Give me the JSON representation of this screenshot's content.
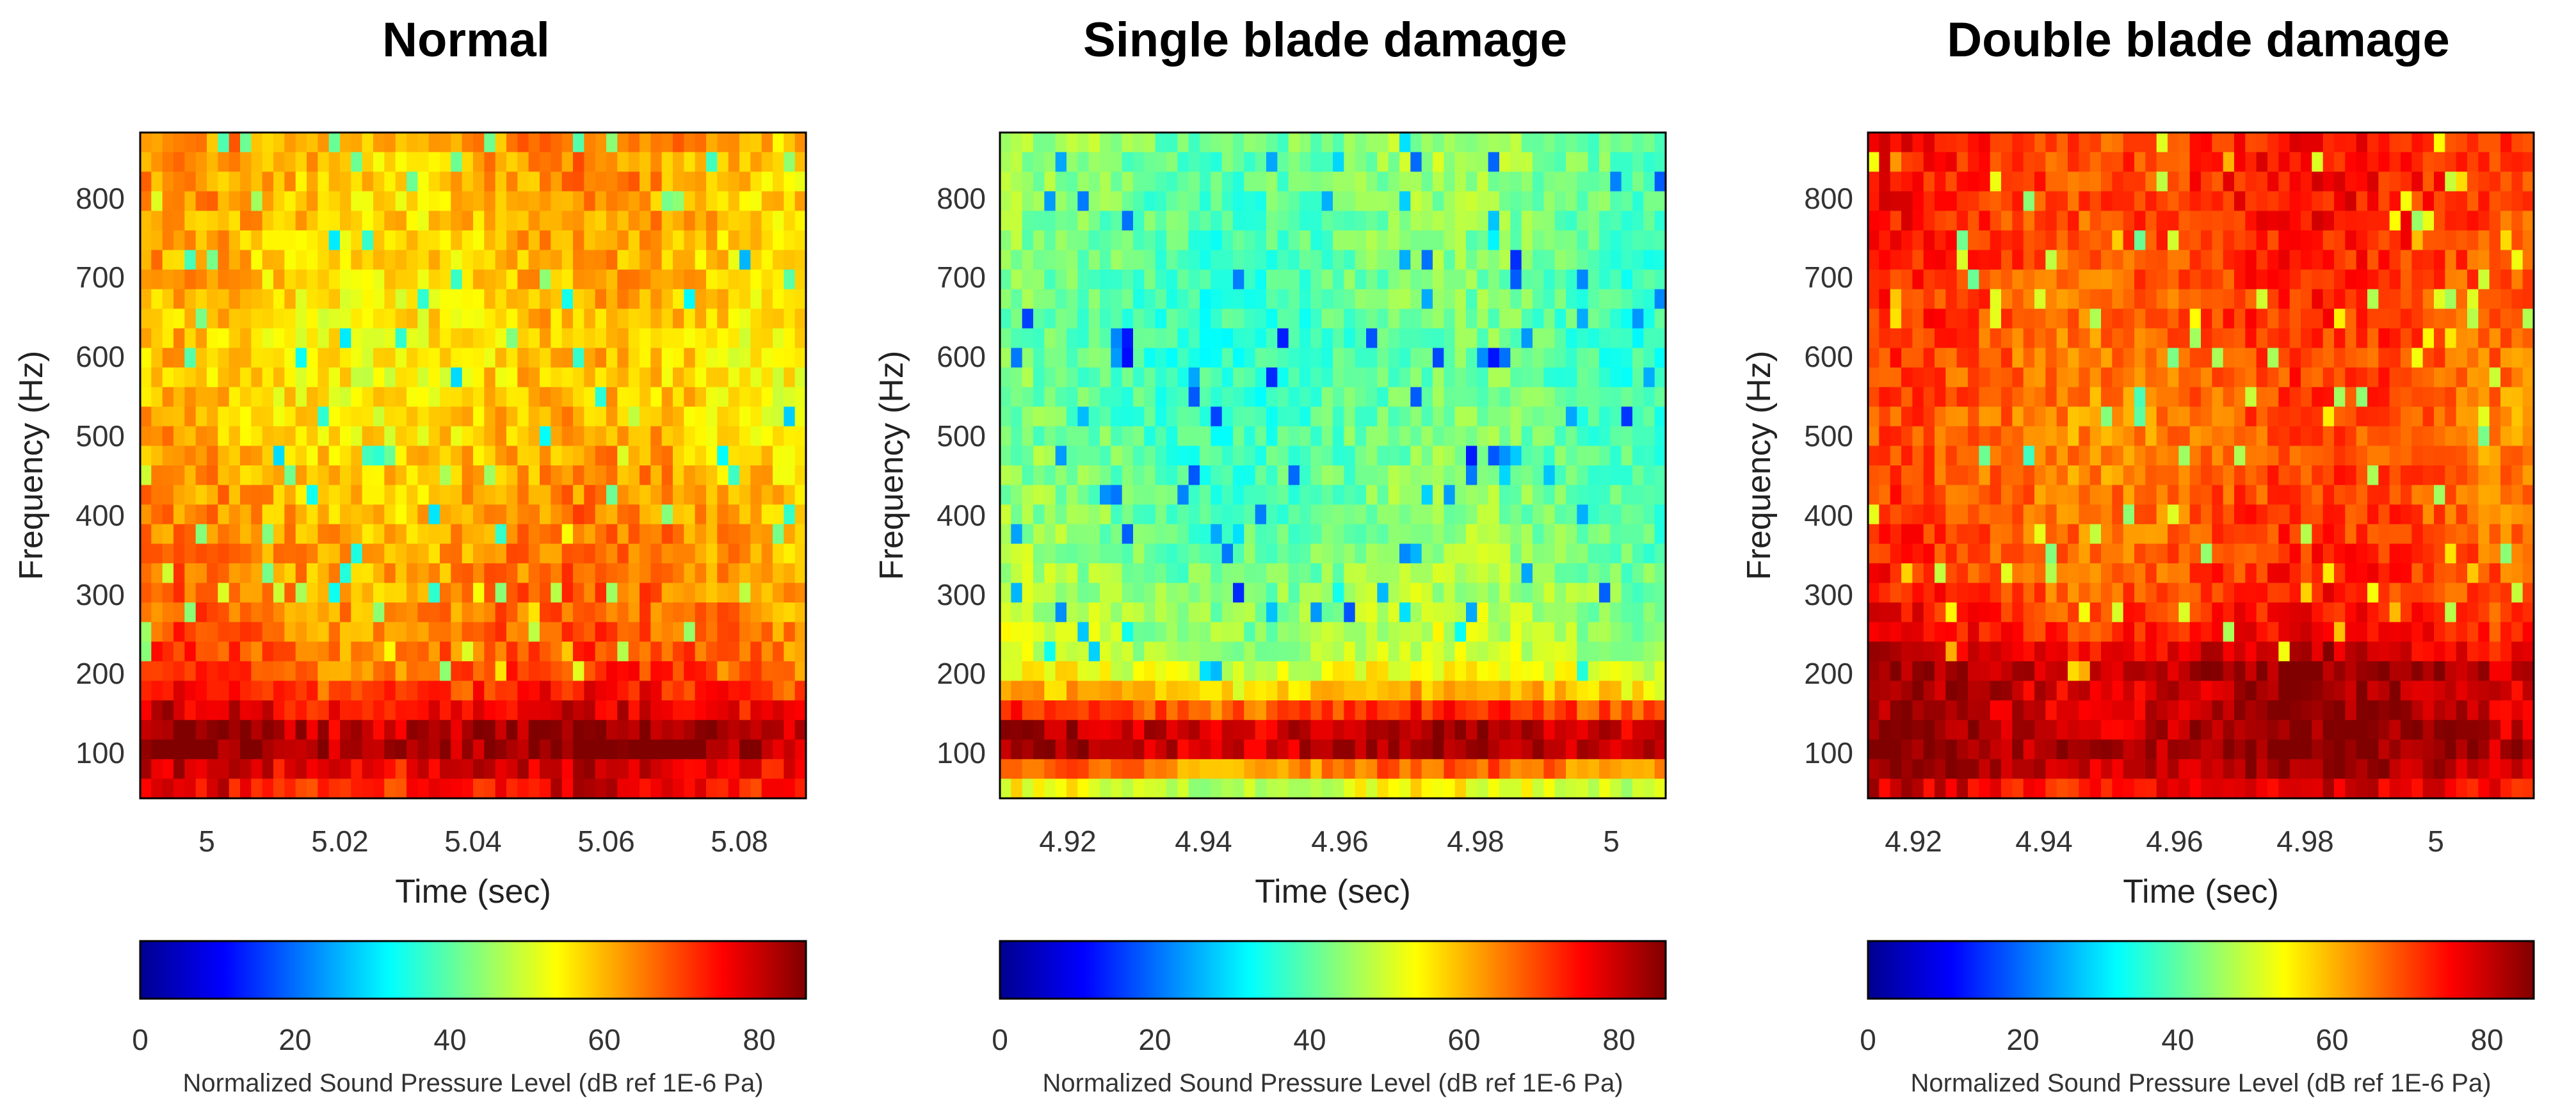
{
  "colors": {
    "jet": [
      "#00008f",
      "#0000ff",
      "#0080ff",
      "#00ffff",
      "#80ff80",
      "#ffff00",
      "#ff8000",
      "#ff0000",
      "#800000"
    ]
  },
  "chart_data": [
    {
      "type": "heatmap",
      "title": "Normal",
      "xlabel": "Time (sec)",
      "ylabel": "Frequency (Hz)",
      "xlim": [
        4.99,
        5.09
      ],
      "xticks": [
        5,
        5.02,
        5.04,
        5.06,
        5.08
      ],
      "xtick_labels": [
        "5",
        "5.02",
        "5.04",
        "5.06",
        "5.08"
      ],
      "ylim": [
        40,
        880
      ],
      "yticks": [
        100,
        200,
        300,
        400,
        500,
        600,
        700,
        800
      ],
      "ytick_labels": [
        "100",
        "200",
        "300",
        "400",
        "500",
        "600",
        "700",
        "800"
      ],
      "colorbar": {
        "label": "Normalized Sound Pressure Level (dB ref 1E-6 Pa)",
        "range": [
          0,
          86
        ],
        "ticks": [
          0,
          20,
          40,
          60,
          80
        ],
        "tick_labels": [
          "0",
          "20",
          "40",
          "60",
          "80"
        ],
        "colormap": "jet"
      },
      "profile": {
        "freq_hz": [
          40,
          80,
          100,
          130,
          160,
          200,
          250,
          300,
          400,
          500,
          600,
          700,
          800,
          880
        ],
        "level_db": [
          74,
          78,
          84,
          82,
          74,
          68,
          66,
          64,
          62,
          58,
          56,
          58,
          60,
          62
        ]
      },
      "texture_variation_db": 11,
      "seed": 11
    },
    {
      "type": "heatmap",
      "title": "Single blade damage",
      "xlabel": "Time (sec)",
      "ylabel": "Frequency (Hz)",
      "xlim": [
        4.91,
        5.008
      ],
      "xticks": [
        4.92,
        4.94,
        4.96,
        4.98,
        5
      ],
      "xtick_labels": [
        "4.92",
        "4.94",
        "4.96",
        "4.98",
        "5"
      ],
      "ylim": [
        40,
        880
      ],
      "yticks": [
        100,
        200,
        300,
        400,
        500,
        600,
        700,
        800
      ],
      "ytick_labels": [
        "100",
        "200",
        "300",
        "400",
        "500",
        "600",
        "700",
        "800"
      ],
      "colorbar": {
        "label": "Normalized Sound Pressure Level (dB ref 1E-6 Pa)",
        "range": [
          0,
          86
        ],
        "ticks": [
          0,
          20,
          40,
          60,
          80
        ],
        "tick_labels": [
          "0",
          "20",
          "40",
          "60",
          "80"
        ],
        "colormap": "jet"
      },
      "profile": {
        "freq_hz": [
          40,
          55,
          70,
          90,
          110,
          130,
          150,
          180,
          220,
          300,
          400,
          500,
          600,
          700,
          800,
          880
        ],
        "level_db": [
          46,
          52,
          58,
          78,
          84,
          80,
          70,
          56,
          48,
          45,
          42,
          40,
          39,
          40,
          42,
          44
        ]
      },
      "texture_variation_db": 10,
      "seed": 23
    },
    {
      "type": "heatmap",
      "title": "Double blade damage",
      "xlabel": "Time (sec)",
      "ylabel": "Frequency (Hz)",
      "xlim": [
        4.913,
        5.015
      ],
      "xticks": [
        4.92,
        4.94,
        4.96,
        4.98,
        5
      ],
      "xtick_labels": [
        "4.92",
        "4.94",
        "4.96",
        "4.98",
        "5"
      ],
      "ylim": [
        40,
        880
      ],
      "yticks": [
        100,
        200,
        300,
        400,
        500,
        600,
        700,
        800
      ],
      "ytick_labels": [
        "100",
        "200",
        "300",
        "400",
        "500",
        "600",
        "700",
        "800"
      ],
      "colorbar": {
        "label": "Normalized Sound Pressure Level (dB ref 1E-6 Pa)",
        "range": [
          0,
          86
        ],
        "ticks": [
          0,
          20,
          40,
          60,
          80
        ],
        "tick_labels": [
          "0",
          "20",
          "40",
          "60",
          "80"
        ],
        "colormap": "jet"
      },
      "profile": {
        "freq_hz": [
          40,
          70,
          100,
          130,
          160,
          200,
          250,
          300,
          400,
          500,
          600,
          700,
          800,
          880
        ],
        "level_db": [
          74,
          80,
          84,
          82,
          80,
          82,
          74,
          70,
          68,
          66,
          68,
          70,
          72,
          72
        ]
      },
      "texture_variation_db": 10,
      "seed": 37
    }
  ]
}
